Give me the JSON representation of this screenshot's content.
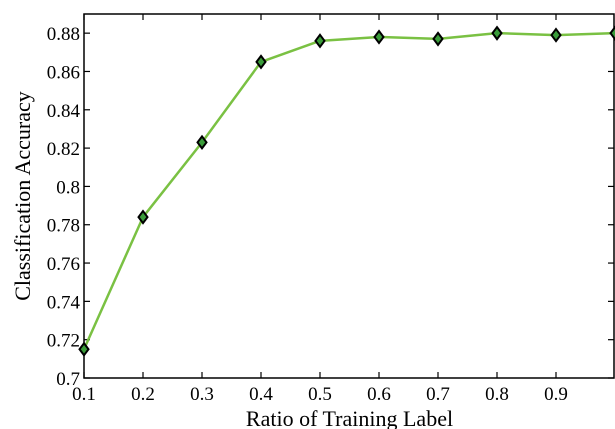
{
  "chart_data": {
    "type": "line",
    "title": "",
    "xlabel": "Ratio of Training Label",
    "ylabel": "Classification Accuracy",
    "xlim": [
      0.1,
      1.0
    ],
    "ylim": [
      0.7,
      0.89
    ],
    "grid": false,
    "legend": "none",
    "x_ticks": [
      "0.1",
      "0.2",
      "0.3",
      "0.4",
      "0.5",
      "0.6",
      "0.7",
      "0.8",
      "0.9"
    ],
    "y_ticks": [
      "0.7",
      "0.72",
      "0.74",
      "0.76",
      "0.78",
      "0.8",
      "0.82",
      "0.84",
      "0.86",
      "0.88"
    ],
    "series": [
      {
        "x": [
          0.1,
          0.2,
          0.3,
          0.4,
          0.5,
          0.6,
          0.7,
          0.8,
          0.9,
          1.0
        ],
        "y": [
          0.715,
          0.784,
          0.823,
          0.865,
          0.876,
          0.878,
          0.877,
          0.88,
          0.879,
          0.88
        ],
        "color": "#7ac143",
        "marker": "diamond",
        "marker_fill": "#3a9c3a",
        "marker_edge": "#000000"
      }
    ]
  }
}
